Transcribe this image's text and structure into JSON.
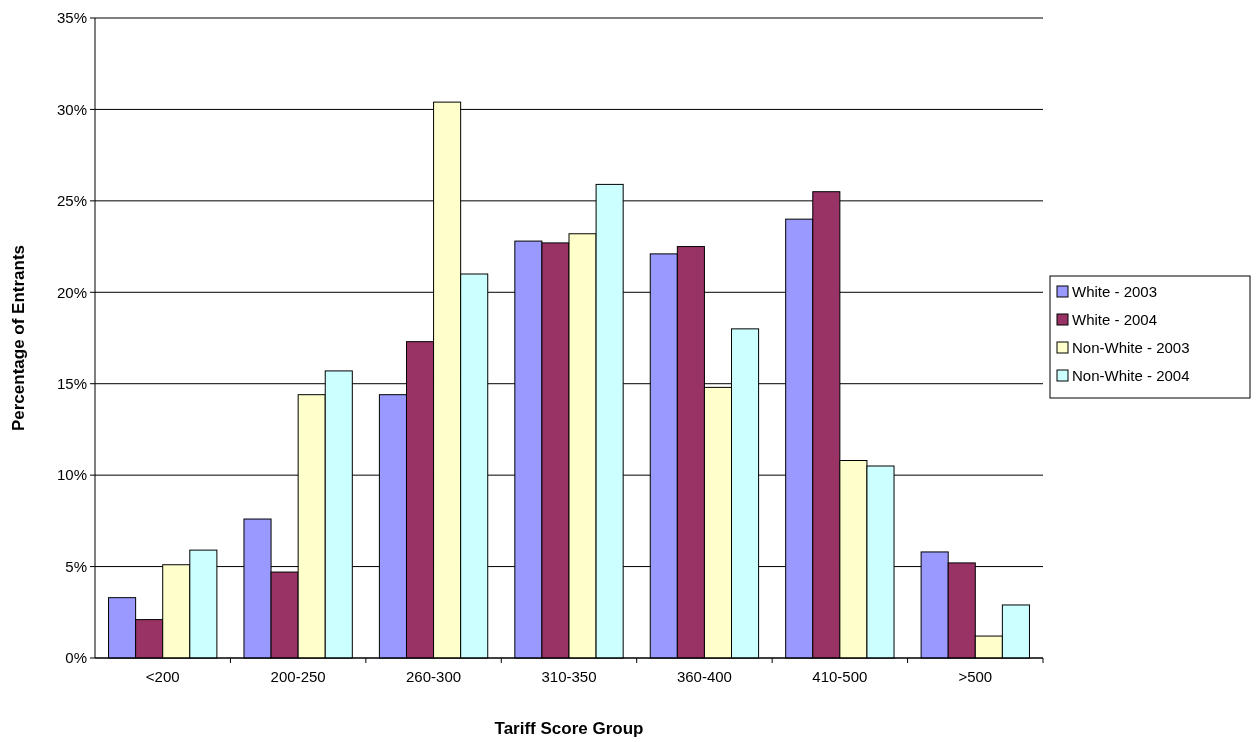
{
  "chart_data": {
    "type": "bar",
    "xlabel": "Tariff Score Group",
    "ylabel": "Percentage of Entrants",
    "categories": [
      "<200",
      "200-250",
      "260-300",
      "310-350",
      "360-400",
      "410-500",
      ">500"
    ],
    "series": [
      {
        "name": "White - 2003",
        "color": "#9999ff",
        "values": [
          3.3,
          7.6,
          14.4,
          22.8,
          22.1,
          24.0,
          5.8
        ]
      },
      {
        "name": "White - 2004",
        "color": "#993366",
        "values": [
          2.1,
          4.7,
          17.3,
          22.7,
          22.5,
          25.5,
          5.2
        ]
      },
      {
        "name": "Non-White - 2003",
        "color": "#ffffcc",
        "values": [
          5.1,
          14.4,
          30.4,
          23.2,
          14.8,
          10.8,
          1.2
        ]
      },
      {
        "name": "Non-White - 2004",
        "color": "#ccffff",
        "values": [
          5.9,
          15.7,
          21.0,
          25.9,
          18.0,
          10.5,
          2.9
        ]
      }
    ],
    "ylim": [
      0,
      35
    ],
    "yticks": [
      {
        "value": 0,
        "label": "0%"
      },
      {
        "value": 5,
        "label": "5%"
      },
      {
        "value": 10,
        "label": "10%"
      },
      {
        "value": 15,
        "label": "15%"
      },
      {
        "value": 20,
        "label": "20%"
      },
      {
        "value": 25,
        "label": "25%"
      },
      {
        "value": 30,
        "label": "30%"
      },
      {
        "value": 35,
        "label": "35%"
      }
    ],
    "grid": "y",
    "legend": "right"
  }
}
